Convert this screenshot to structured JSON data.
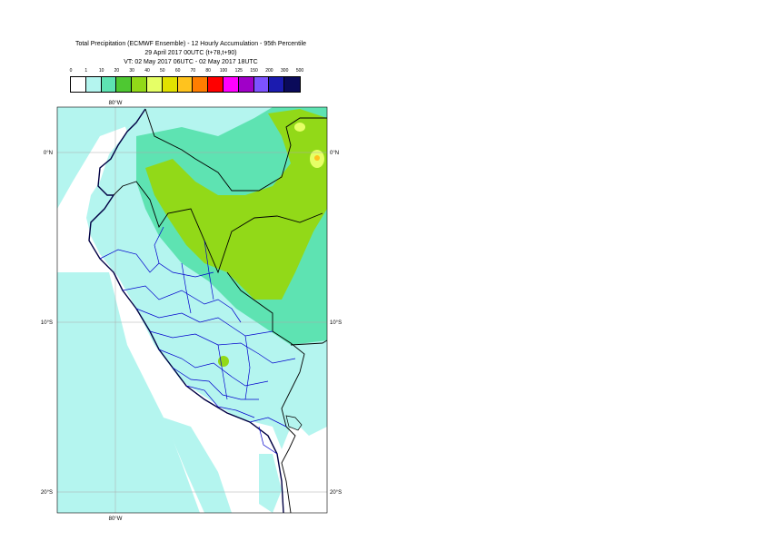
{
  "title": {
    "line1": "Total Precipitation (ECMWF Ensemble) - 12 Hourly Accumulation - 95th Percentile",
    "line2": "29 April 2017 00UTC (t+78,t+90)",
    "line3": "VT: 02 May 2017 06UTC - 02 May 2017 18UTC"
  },
  "legend": {
    "labels": [
      "0",
      "1",
      "10",
      "20",
      "30",
      "40",
      "50",
      "60",
      "70",
      "80",
      "100",
      "125",
      "150",
      "200",
      "300",
      "500"
    ],
    "colors": [
      "#ffffff",
      "#b4f5ef",
      "#5ee3b2",
      "#4ec832",
      "#92d918",
      "#e6ff66",
      "#e1e100",
      "#ffc31e",
      "#ff7d00",
      "#ff0000",
      "#ff00ff",
      "#a000c8",
      "#7d52ff",
      "#1b1baf",
      "#0a0a5a"
    ]
  },
  "map": {
    "lat_labels": [
      "0°N",
      "10°S",
      "20°S"
    ],
    "lon_label": "80°W",
    "colors": {
      "ocean_light": "#b4f5ef",
      "teal": "#5ee3b2",
      "green": "#92d918",
      "yellow": "#e6ff66",
      "orange": "#ffc31e",
      "border_national": "#000000",
      "border_regional": "#0000cc",
      "coast": "#000044"
    }
  }
}
